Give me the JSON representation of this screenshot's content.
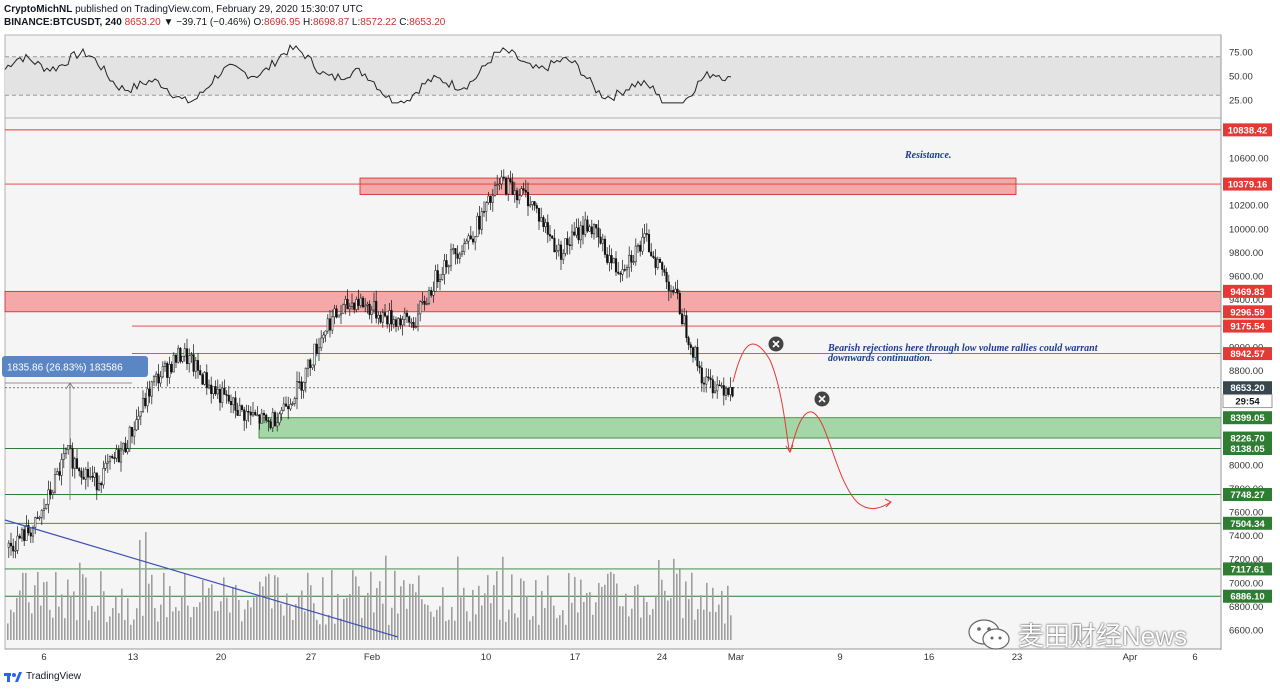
{
  "header": {
    "line1_author": "CryptoMichNL",
    "line1_rest": "published on TradingView.com, February 29, 2020 15:30:07 UTC",
    "symbol": "BINANCE:BTCUSDT, 240",
    "last": "8653.20",
    "change": "▼ −39.71 (−0.46%)",
    "ohlc": {
      "O": "8696.95",
      "H": "8698.87",
      "L": "8572.22",
      "C": "8653.20"
    }
  },
  "rsi_ticks": [
    "75.00",
    "50.00",
    "25.00"
  ],
  "price_ticks": [
    "10600.00",
    "10200.00",
    "10000.00",
    "9800.00",
    "9600.00",
    "9400.00",
    "9000.00",
    "8800.00",
    "8000.00",
    "7800.00",
    "7600.00",
    "7400.00",
    "7200.00",
    "7000.00",
    "6800.00",
    "6600.00"
  ],
  "level_labels": [
    {
      "text": "10838.42",
      "price": 10838.42,
      "bg": "#e53935"
    },
    {
      "text": "10379.16",
      "price": 10379.16,
      "bg": "#e53935"
    },
    {
      "text": "9469.83",
      "price": 9469.83,
      "bg": "#e53935"
    },
    {
      "text": "9296.59",
      "price": 9296.59,
      "bg": "#e53935"
    },
    {
      "text": "9175.54",
      "price": 9175.54,
      "bg": "#e53935"
    },
    {
      "text": "8942.57",
      "price": 8942.57,
      "bg": "#e53935"
    },
    {
      "text": "8653.20",
      "price": 8653.2,
      "bg": "#37474f"
    },
    {
      "text": "29:54",
      "price": 8540,
      "bg": "#ffffff",
      "fg": "#131722"
    },
    {
      "text": "8399.05",
      "price": 8399.05,
      "bg": "#2e7d32"
    },
    {
      "text": "8226.70",
      "price": 8226.7,
      "bg": "#2e7d32"
    },
    {
      "text": "8138.05",
      "price": 8138.05,
      "bg": "#2e7d32"
    },
    {
      "text": "7748.27",
      "price": 7748.27,
      "bg": "#2e7d32"
    },
    {
      "text": "7504.34",
      "price": 7504.34,
      "bg": "#2e7d32"
    },
    {
      "text": "7117.61",
      "price": 7117.61,
      "bg": "#2e7d32"
    },
    {
      "text": "6886.10",
      "price": 6886.1,
      "bg": "#2e7d32"
    }
  ],
  "x_ticks": [
    "6",
    "13",
    "20",
    "27",
    "Feb",
    "10",
    "17",
    "24",
    "Mar",
    "9",
    "16",
    "23",
    "Apr",
    "6"
  ],
  "annotations": {
    "resistance": "Resistance.",
    "bearish_line1": "Bearish rejections here through low volume rallies could warrant",
    "bearish_line2": "downwards continuation.",
    "measure": "1835.86 (26.83%) 183586"
  },
  "footer_brand": "TradingView",
  "watermark_text": "麦田财经News",
  "colors": {
    "resistance_zone": "#f4a9a8",
    "support_zone": "#a5d6a7",
    "red_line": "#e53935",
    "green_line": "#2e7d32",
    "trend_line": "#3f51b5",
    "forecast": "#e53935"
  },
  "chart_data": {
    "type": "line",
    "title": "",
    "series": [
      {
        "x": [
          "Jan 3",
          "Jan 6",
          "Jan 8",
          "Jan 10",
          "Jan 13",
          "Jan 15",
          "Jan 18",
          "Jan 20",
          "Jan 23",
          "Jan 25",
          "Jan 27",
          "Jan 29",
          "Feb 1",
          "Feb 3",
          "Feb 5",
          "Feb 7",
          "Feb 10",
          "Feb 13",
          "Feb 15",
          "Feb 17",
          "Feb 19",
          "Feb 21",
          "Feb 23",
          "Feb 25",
          "Feb 27",
          "Feb 29"
        ],
        "y": [
          7300,
          7500,
          8100,
          7850,
          8150,
          8700,
          8950,
          8650,
          8450,
          8350,
          8650,
          9200,
          9400,
          9250,
          9200,
          9700,
          9950,
          10400,
          10250,
          9800,
          10050,
          9650,
          9900,
          9450,
          8700,
          8653.2
        ]
      }
    ],
    "ylim": [
      6500,
      11000
    ],
    "rsi_ylim": [
      0,
      100
    ],
    "grid": false
  }
}
